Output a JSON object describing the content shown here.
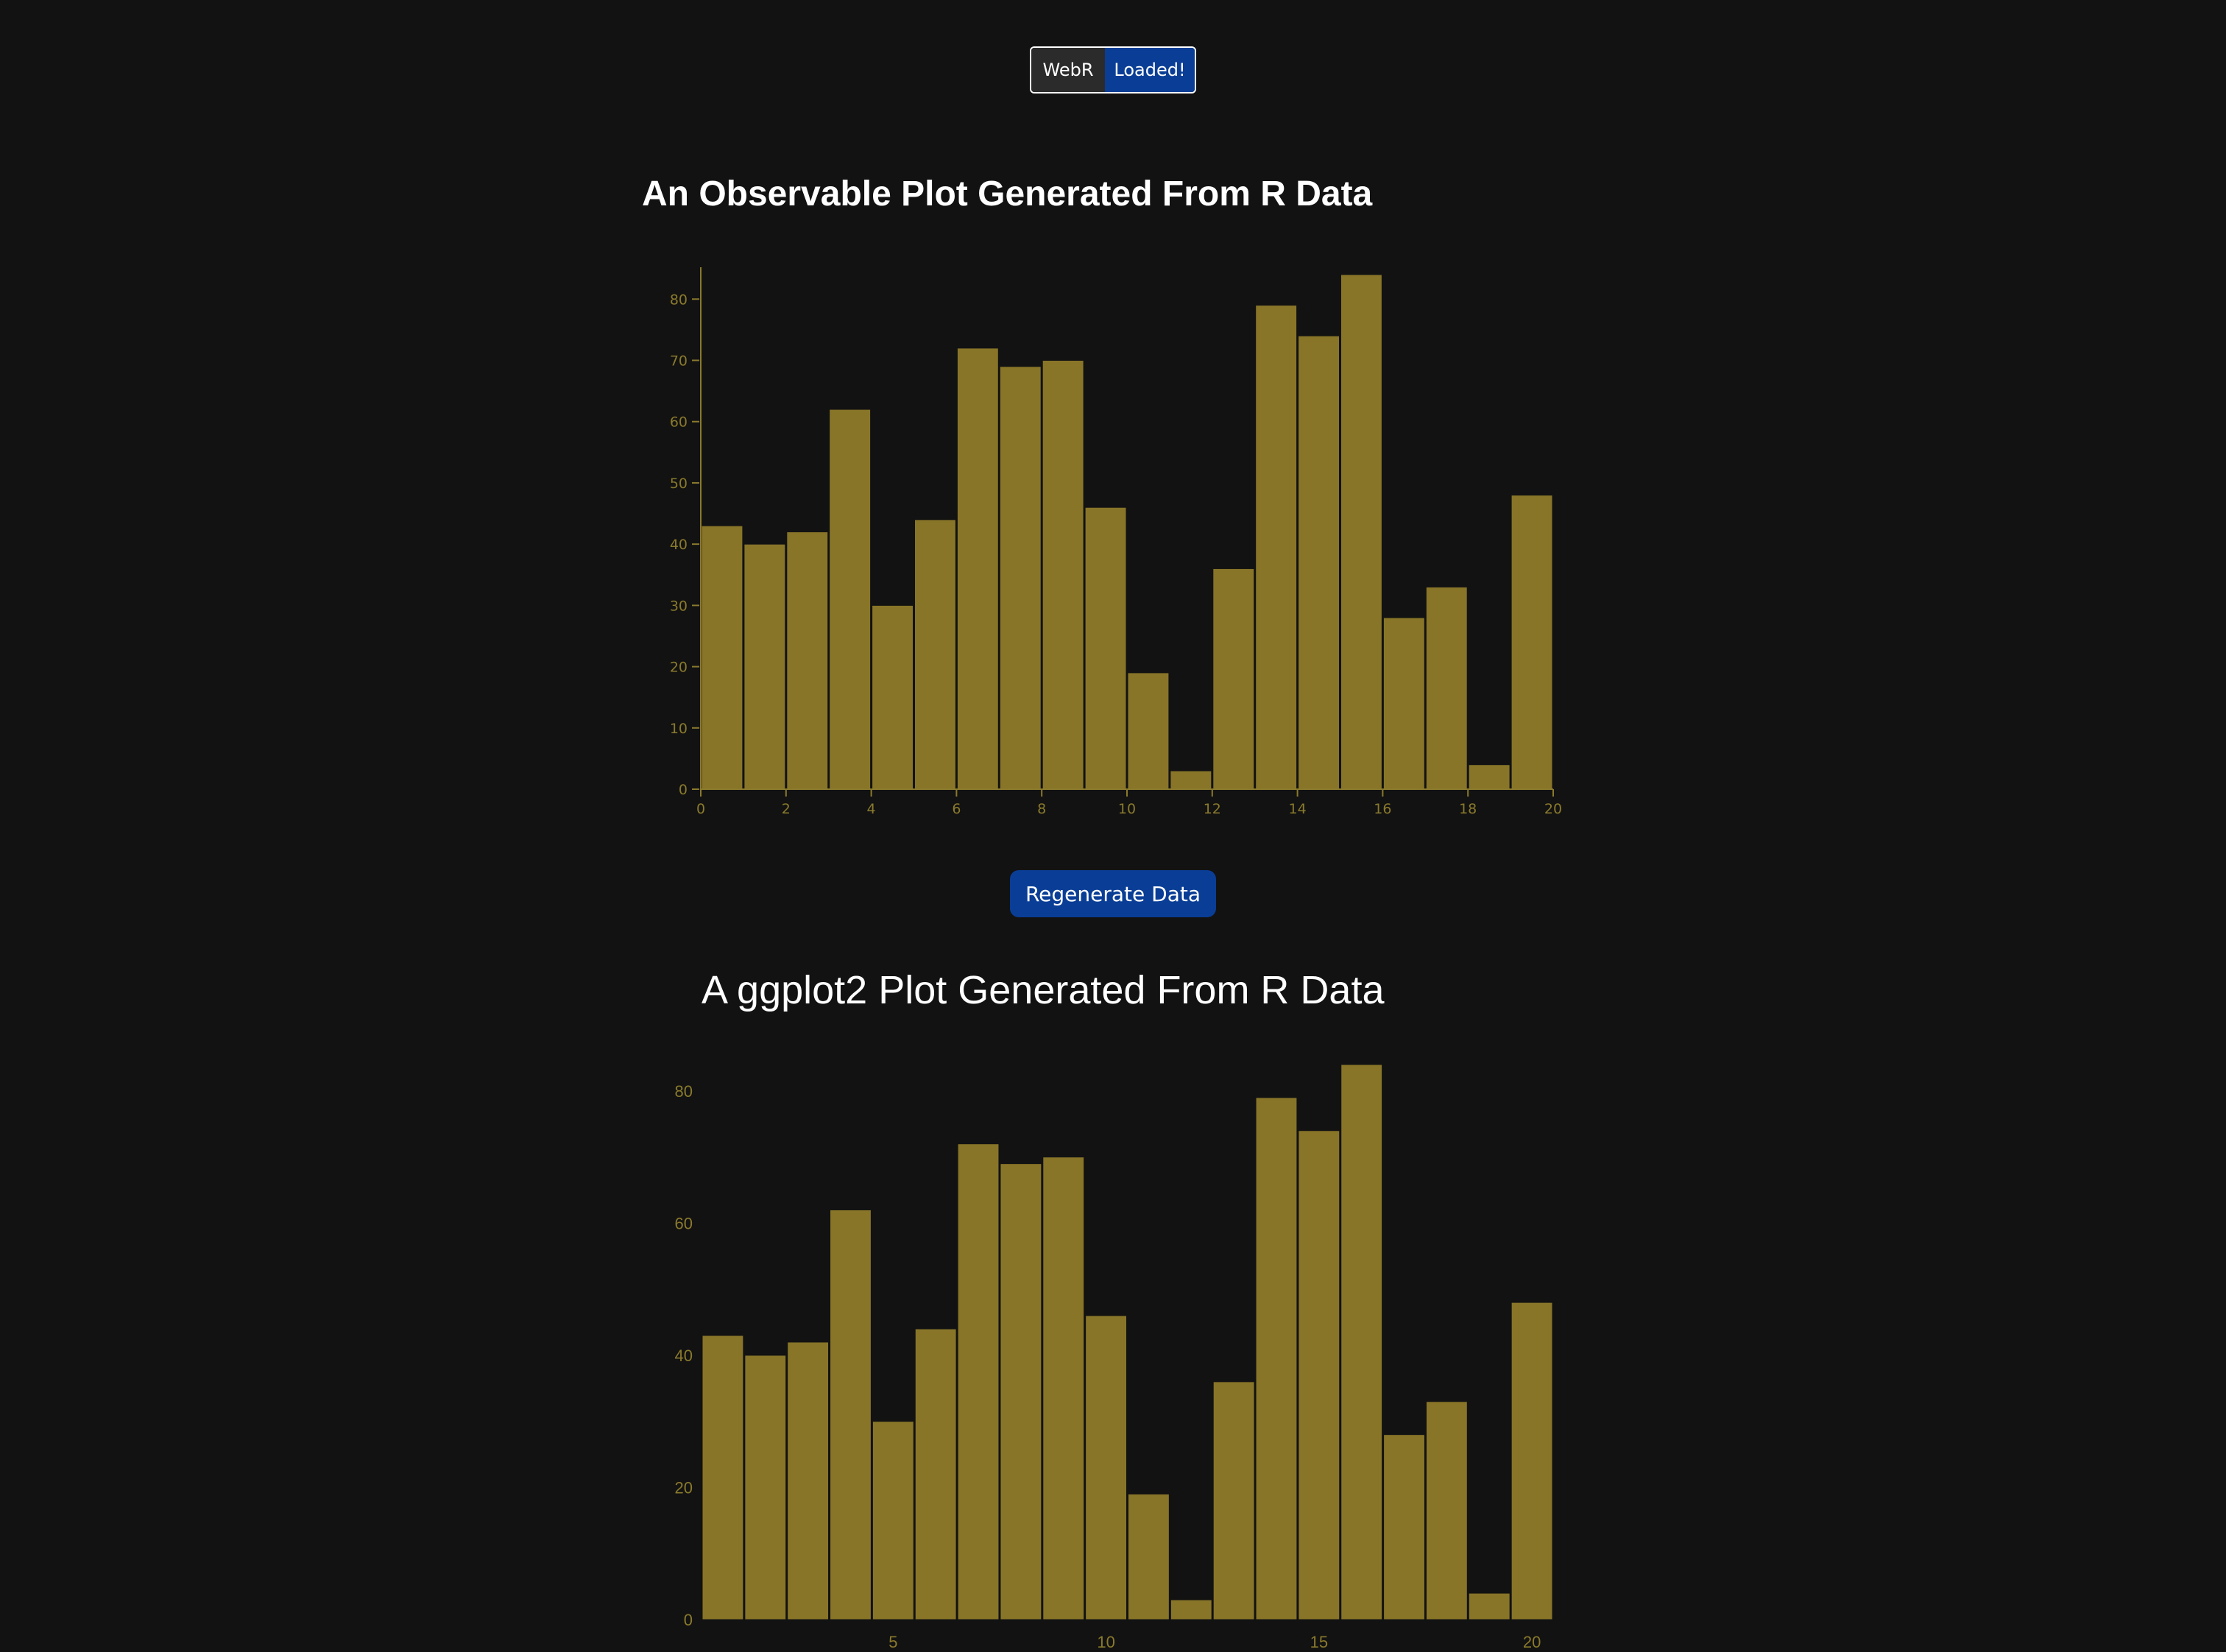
{
  "status": {
    "name": "WebR",
    "state": "Loaded!"
  },
  "observable": {
    "title": "An Observable Plot Generated From R Data"
  },
  "button": {
    "label": "Regenerate Data"
  },
  "ggplot": {
    "title": "A ggplot2 Plot Generated From R Data"
  },
  "colors": {
    "bar": "#887528",
    "bar_stroke": "#121212",
    "background": "#121212",
    "accent": "#0a3e96"
  },
  "chart_data": [
    {
      "type": "bar",
      "title": "An Observable Plot Generated From R Data",
      "x": [
        1,
        2,
        3,
        4,
        5,
        6,
        7,
        8,
        9,
        10,
        11,
        12,
        13,
        14,
        15,
        16,
        17,
        18,
        19,
        20
      ],
      "values": [
        43,
        40,
        42,
        62,
        30,
        44,
        72,
        69,
        70,
        46,
        19,
        3,
        36,
        79,
        74,
        84,
        28,
        33,
        4,
        48
      ],
      "xlim": [
        0,
        20
      ],
      "ylim": [
        0,
        84
      ],
      "xticks": [
        0,
        2,
        4,
        6,
        8,
        10,
        12,
        14,
        16,
        18,
        20
      ],
      "yticks": [
        0,
        10,
        20,
        30,
        40,
        50,
        60,
        70,
        80
      ],
      "xlabel": "",
      "ylabel": "",
      "grid": false
    },
    {
      "type": "bar",
      "title": "A ggplot2 Plot Generated From R Data",
      "x": [
        1,
        2,
        3,
        4,
        5,
        6,
        7,
        8,
        9,
        10,
        11,
        12,
        13,
        14,
        15,
        16,
        17,
        18,
        19,
        20
      ],
      "values": [
        43,
        40,
        42,
        62,
        30,
        44,
        72,
        69,
        70,
        46,
        19,
        3,
        36,
        79,
        74,
        84,
        28,
        33,
        4,
        48
      ],
      "xlim": [
        0.5,
        20.5
      ],
      "ylim": [
        0,
        84
      ],
      "xticks": [
        5,
        10,
        15,
        20
      ],
      "yticks": [
        0,
        20,
        40,
        60,
        80
      ],
      "xlabel": "",
      "ylabel": "",
      "grid": false
    }
  ]
}
